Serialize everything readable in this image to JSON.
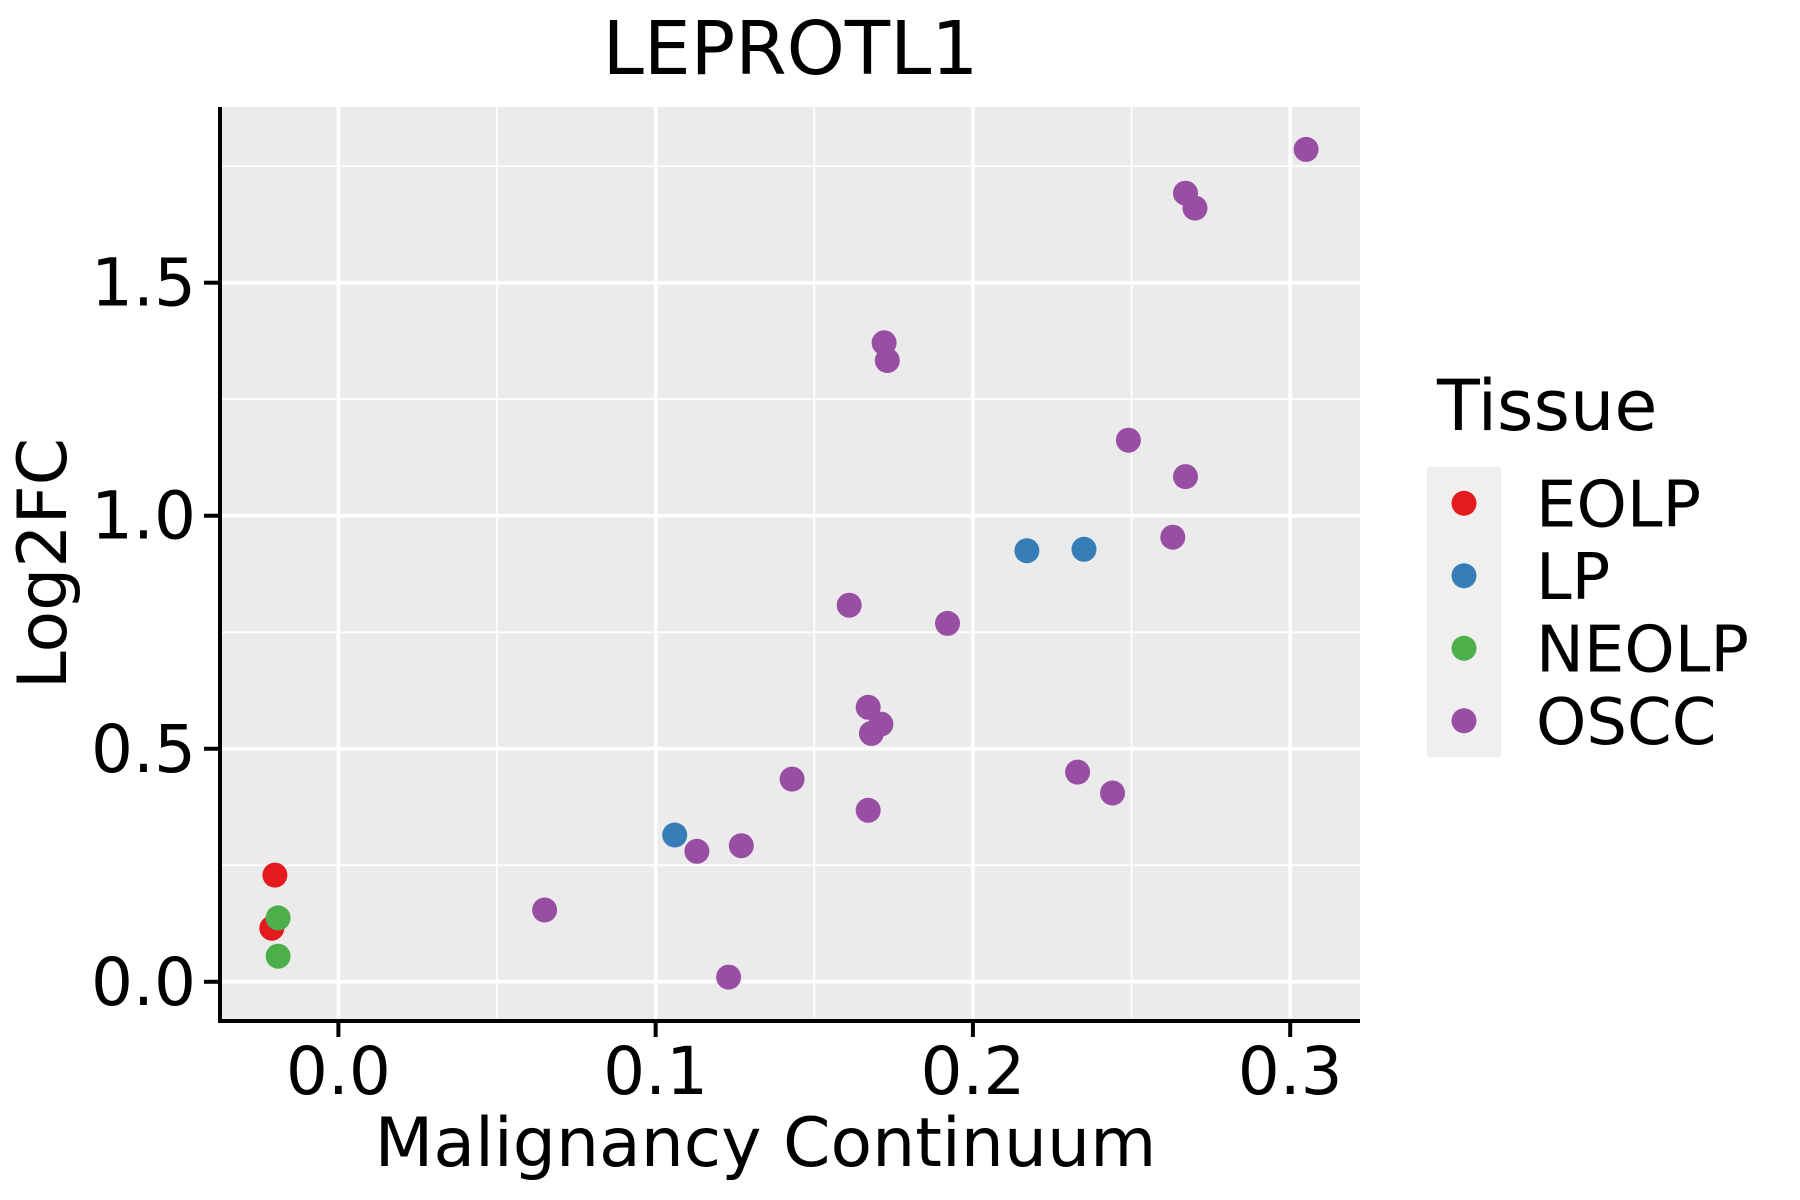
{
  "figure": {
    "title": "LEPROTL1"
  },
  "chart_data": {
    "type": "scatter",
    "title": "LEPROTL1",
    "xlabel": "Malignancy Continuum",
    "ylabel": "Log2FC",
    "xlim": [
      -0.037,
      0.322
    ],
    "ylim": [
      -0.082,
      1.877
    ],
    "x_ticks": [
      0.0,
      0.1,
      0.2,
      0.3
    ],
    "x_tick_labels": [
      "0.0",
      "0.1",
      "0.2",
      "0.3"
    ],
    "y_ticks": [
      0.0,
      0.5,
      1.0,
      1.5
    ],
    "y_tick_labels": [
      "0.0",
      "0.5",
      "1.0",
      "1.5"
    ],
    "x_minor_ticks": [
      -0.05,
      0.05,
      0.15,
      0.25,
      0.35
    ],
    "y_minor_ticks": [
      -0.25,
      0.25,
      0.75,
      1.25,
      1.75
    ],
    "grid": true,
    "legend": {
      "title": "Tissue",
      "position": "right"
    },
    "series": [
      {
        "name": "EOLP",
        "color": "#E41A1C",
        "points": [
          [
            -0.02,
            0.229
          ],
          [
            -0.021,
            0.115
          ]
        ]
      },
      {
        "name": "LP",
        "color": "#377EB8",
        "points": [
          [
            0.106,
            0.315
          ],
          [
            0.217,
            0.925
          ],
          [
            0.235,
            0.928
          ]
        ]
      },
      {
        "name": "NEOLP",
        "color": "#4DAF4A",
        "points": [
          [
            -0.019,
            0.137
          ],
          [
            -0.019,
            0.055
          ]
        ]
      },
      {
        "name": "OSCC",
        "color": "#984EA3",
        "points": [
          [
            0.305,
            1.786
          ],
          [
            0.267,
            1.692
          ],
          [
            0.27,
            1.66
          ],
          [
            0.172,
            1.371
          ],
          [
            0.173,
            1.333
          ],
          [
            0.249,
            1.162
          ],
          [
            0.267,
            1.084
          ],
          [
            0.263,
            0.954
          ],
          [
            0.161,
            0.808
          ],
          [
            0.192,
            0.769
          ],
          [
            0.167,
            0.589
          ],
          [
            0.171,
            0.553
          ],
          [
            0.168,
            0.533
          ],
          [
            0.233,
            0.45
          ],
          [
            0.244,
            0.405
          ],
          [
            0.143,
            0.435
          ],
          [
            0.167,
            0.368
          ],
          [
            0.127,
            0.292
          ],
          [
            0.113,
            0.28
          ],
          [
            0.065,
            0.154
          ],
          [
            0.123,
            0.01
          ]
        ]
      }
    ],
    "styles": {
      "panel_bg": "#EBEBEB",
      "grid_color": "#FFFFFF",
      "axis_color": "#000000",
      "text_color": "#000000",
      "legend_key_bg": "#EFEFEF"
    }
  }
}
